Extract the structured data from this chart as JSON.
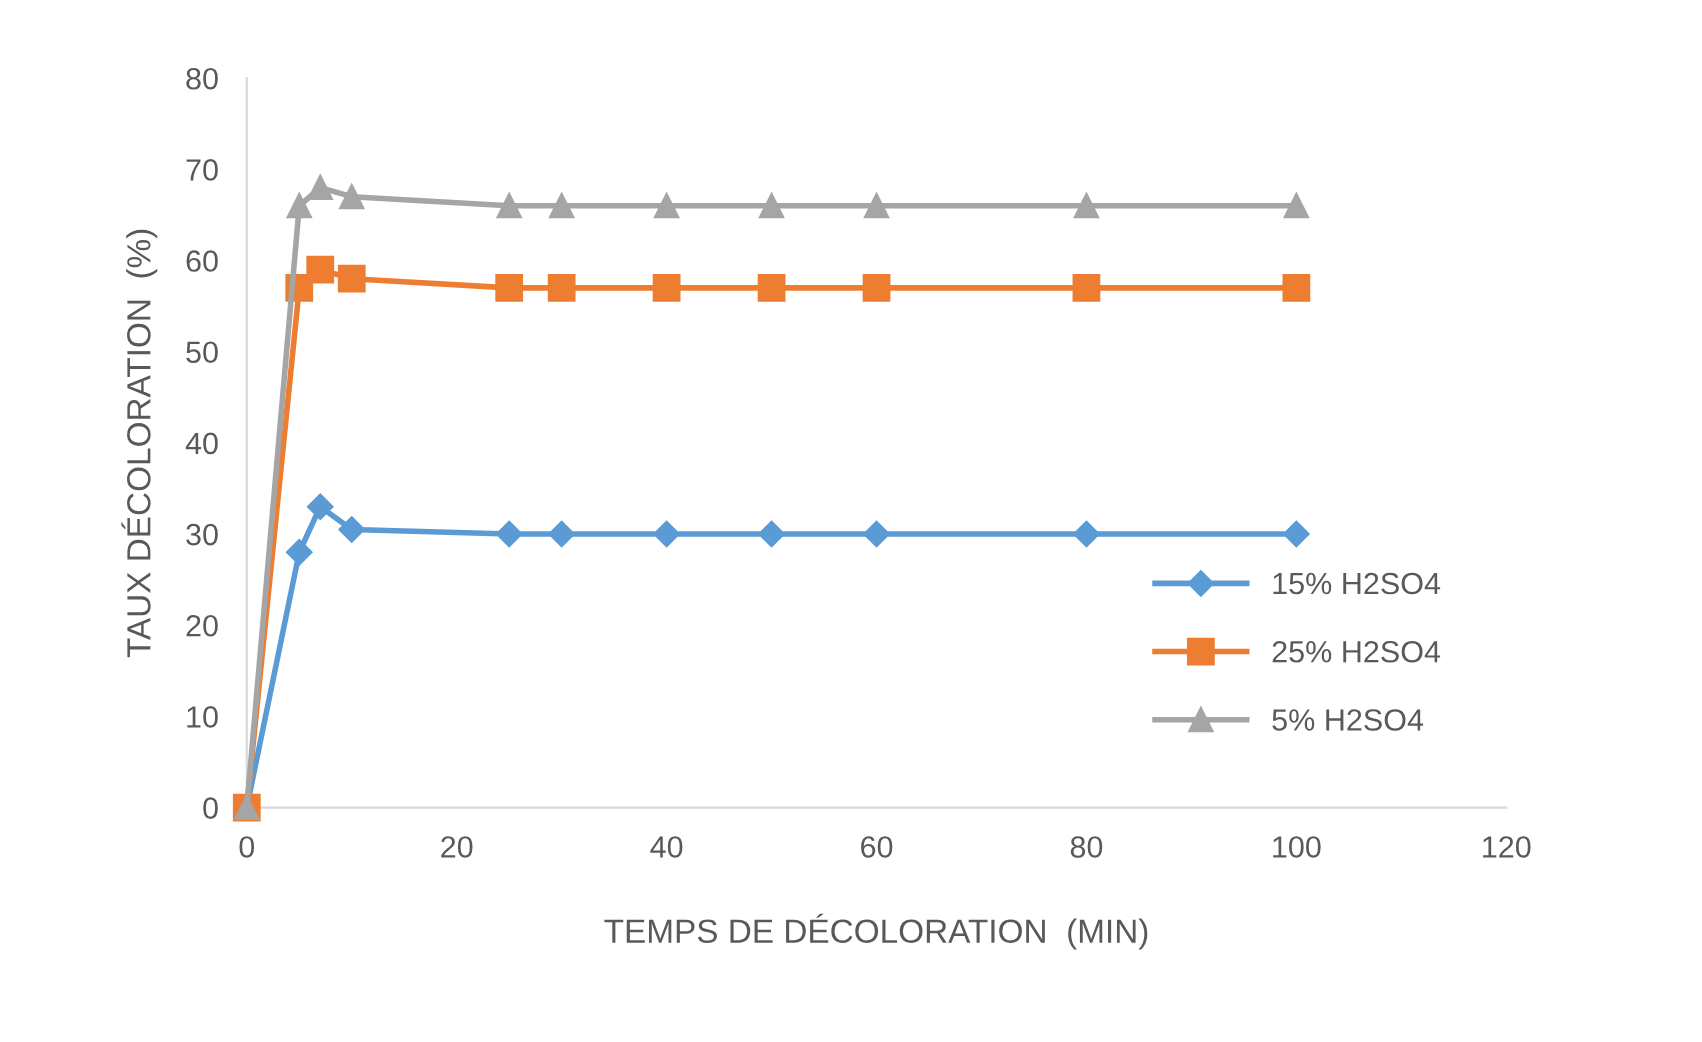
{
  "chart_data": {
    "type": "line",
    "xlabel": "TEMPS DE DÉCOLORATION  (MIN)",
    "ylabel": "TAUX DÉCOLORATION  (%)",
    "x": [
      0,
      5,
      7,
      10,
      25,
      30,
      40,
      50,
      60,
      80,
      100
    ],
    "series": [
      {
        "name": "15% H2SO4",
        "color": "#5b9bd5",
        "marker": "diamond",
        "values": [
          0,
          28,
          33,
          30.5,
          30,
          30,
          30,
          30,
          30,
          30,
          30
        ]
      },
      {
        "name": "25% H2SO4",
        "color": "#ed7d31",
        "marker": "square",
        "values": [
          0,
          57,
          59,
          58,
          57,
          57,
          57,
          57,
          57,
          57,
          57
        ]
      },
      {
        "name": "5% H2SO4",
        "color": "#a5a5a5",
        "marker": "triangle",
        "values": [
          0,
          66,
          68,
          67,
          66,
          66,
          66,
          66,
          66,
          66,
          66
        ]
      }
    ],
    "xlim": [
      0,
      120
    ],
    "xticks": [
      0,
      20,
      40,
      60,
      80,
      100,
      120
    ],
    "ylim": [
      0,
      80
    ],
    "yticks": [
      0,
      10,
      20,
      30,
      40,
      50,
      60,
      70,
      80
    ],
    "grid": false,
    "legend": "right"
  }
}
